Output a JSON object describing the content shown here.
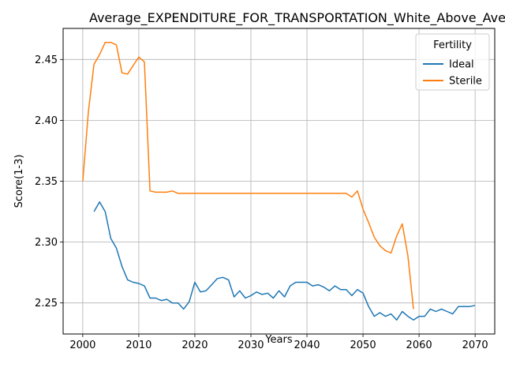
{
  "chart_data": {
    "type": "line",
    "title": "Average_EXPENDITURE_FOR_TRANSPORTATION_White_Above_Average_I",
    "xlabel": "Years",
    "ylabel": "Score(1-3)",
    "xlim": [
      1996.5,
      2073.5
    ],
    "ylim": [
      2.2245,
      2.4755
    ],
    "x_ticks": [
      2000,
      2010,
      2020,
      2030,
      2040,
      2050,
      2060,
      2070
    ],
    "y_ticks": [
      2.25,
      2.3,
      2.35,
      2.4,
      2.45
    ],
    "x_tick_labels": [
      "2000",
      "2010",
      "2020",
      "2030",
      "2040",
      "2050",
      "2060",
      "2070"
    ],
    "y_tick_labels": [
      "2.25",
      "2.30",
      "2.35",
      "2.40",
      "2.45"
    ],
    "grid": true,
    "legend": {
      "title": "Fertility",
      "placement": "top-right"
    },
    "series": [
      {
        "name": "Ideal",
        "color": "#1f77b4",
        "x": [
          2002,
          2003,
          2004,
          2005,
          2006,
          2007,
          2008,
          2009,
          2010,
          2011,
          2012,
          2013,
          2014,
          2015,
          2016,
          2017,
          2018,
          2019,
          2020,
          2021,
          2022,
          2023,
          2024,
          2025,
          2026,
          2027,
          2028,
          2029,
          2030,
          2031,
          2032,
          2033,
          2034,
          2035,
          2036,
          2037,
          2038,
          2039,
          2040,
          2041,
          2042,
          2043,
          2044,
          2045,
          2046,
          2047,
          2048,
          2049,
          2050,
          2051,
          2052,
          2053,
          2054,
          2055,
          2056,
          2057,
          2058,
          2059,
          2060,
          2061,
          2062,
          2063,
          2064,
          2065,
          2066,
          2067,
          2068,
          2069,
          2070
        ],
        "y": [
          2.325,
          2.333,
          2.325,
          2.303,
          2.295,
          2.28,
          2.269,
          2.267,
          2.266,
          2.264,
          2.254,
          2.254,
          2.252,
          2.253,
          2.25,
          2.25,
          2.245,
          2.251,
          2.267,
          2.259,
          2.26,
          2.265,
          2.27,
          2.271,
          2.269,
          2.255,
          2.26,
          2.254,
          2.256,
          2.259,
          2.257,
          2.258,
          2.254,
          2.26,
          2.255,
          2.264,
          2.267,
          2.267,
          2.267,
          2.264,
          2.265,
          2.263,
          2.26,
          2.264,
          2.261,
          2.261,
          2.256,
          2.261,
          2.258,
          2.247,
          2.239,
          2.242,
          2.239,
          2.241,
          2.236,
          2.243,
          2.239,
          2.236,
          2.239,
          2.239,
          2.245,
          2.243,
          2.245,
          2.243,
          2.241,
          2.247,
          2.247,
          2.247,
          2.248
        ]
      },
      {
        "name": "Sterile",
        "color": "#ff7f0e",
        "x": [
          2000,
          2001,
          2002,
          2003,
          2004,
          2005,
          2006,
          2007,
          2008,
          2009,
          2010,
          2011,
          2012,
          2013,
          2014,
          2015,
          2016,
          2017,
          2018,
          2019,
          2020,
          2021,
          2022,
          2023,
          2024,
          2025,
          2026,
          2027,
          2028,
          2029,
          2030,
          2031,
          2032,
          2033,
          2034,
          2035,
          2036,
          2037,
          2038,
          2039,
          2040,
          2041,
          2042,
          2043,
          2044,
          2045,
          2046,
          2047,
          2048,
          2049,
          2050,
          2051,
          2052,
          2053,
          2054,
          2055,
          2056,
          2057,
          2058,
          2059
        ],
        "y": [
          2.35,
          2.407,
          2.446,
          2.454,
          2.464,
          2.464,
          2.462,
          2.439,
          2.438,
          2.445,
          2.452,
          2.448,
          2.342,
          2.341,
          2.341,
          2.341,
          2.342,
          2.34,
          2.34,
          2.34,
          2.34,
          2.34,
          2.34,
          2.34,
          2.34,
          2.34,
          2.34,
          2.34,
          2.34,
          2.34,
          2.34,
          2.34,
          2.34,
          2.34,
          2.34,
          2.34,
          2.34,
          2.34,
          2.34,
          2.34,
          2.34,
          2.34,
          2.34,
          2.34,
          2.34,
          2.34,
          2.34,
          2.34,
          2.337,
          2.342,
          2.327,
          2.316,
          2.304,
          2.297,
          2.293,
          2.291,
          2.305,
          2.315,
          2.289,
          2.245
        ]
      }
    ]
  }
}
